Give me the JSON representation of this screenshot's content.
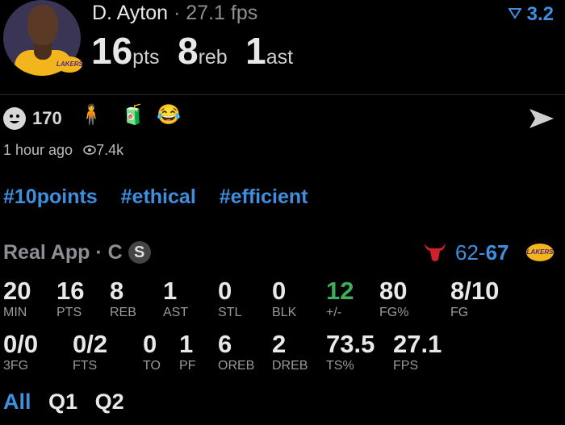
{
  "header": {
    "player_name": "D. Ayton",
    "separator": "·",
    "fps": "27.1 fps",
    "pts": "16",
    "pts_unit": "pts",
    "reb": "8",
    "reb_unit": "reb",
    "ast": "1",
    "ast_unit": "ast",
    "rating": "3.2",
    "rating_icon": "filter-triangle-icon",
    "team_badge": "LAKERS"
  },
  "reactions": {
    "count": "170",
    "emojis": [
      "🧍",
      "🧃",
      "😂"
    ]
  },
  "meta": {
    "time": "1 hour ago",
    "views": "7.4k"
  },
  "tags": [
    "#10points",
    "#ethical",
    "#efficient"
  ],
  "game": {
    "source": "Real App",
    "separator": "·",
    "position": "C",
    "badge": "S",
    "home_score": "62",
    "dash": "-",
    "away_score": "67",
    "away_logo": "LAKERS",
    "home_logo_icon": "bull-icon"
  },
  "stats_row1": [
    {
      "value": "20",
      "label": "MIN"
    },
    {
      "value": "16",
      "label": "PTS"
    },
    {
      "value": "8",
      "label": "REB"
    },
    {
      "value": "1",
      "label": "AST"
    },
    {
      "value": "0",
      "label": "STL"
    },
    {
      "value": "0",
      "label": "BLK"
    },
    {
      "value": "12",
      "label": "+/-"
    },
    {
      "value": "80",
      "label": "FG%"
    },
    {
      "value": "8/10",
      "label": "FG"
    }
  ],
  "stats_row2": [
    {
      "value": "0/0",
      "label": "3FG"
    },
    {
      "value": "0/2",
      "label": "FTS"
    },
    {
      "value": "0",
      "label": "TO"
    },
    {
      "value": "1",
      "label": "PF"
    },
    {
      "value": "6",
      "label": "OREB"
    },
    {
      "value": "2",
      "label": "DREB"
    },
    {
      "value": "73.5",
      "label": "TS%"
    },
    {
      "value": "27.1",
      "label": "FPS"
    }
  ],
  "quarters": [
    "All",
    "Q1",
    "Q2"
  ],
  "colors": {
    "accent": "#3e8fe0",
    "positive": "#3fae5a",
    "background": "#000000"
  }
}
